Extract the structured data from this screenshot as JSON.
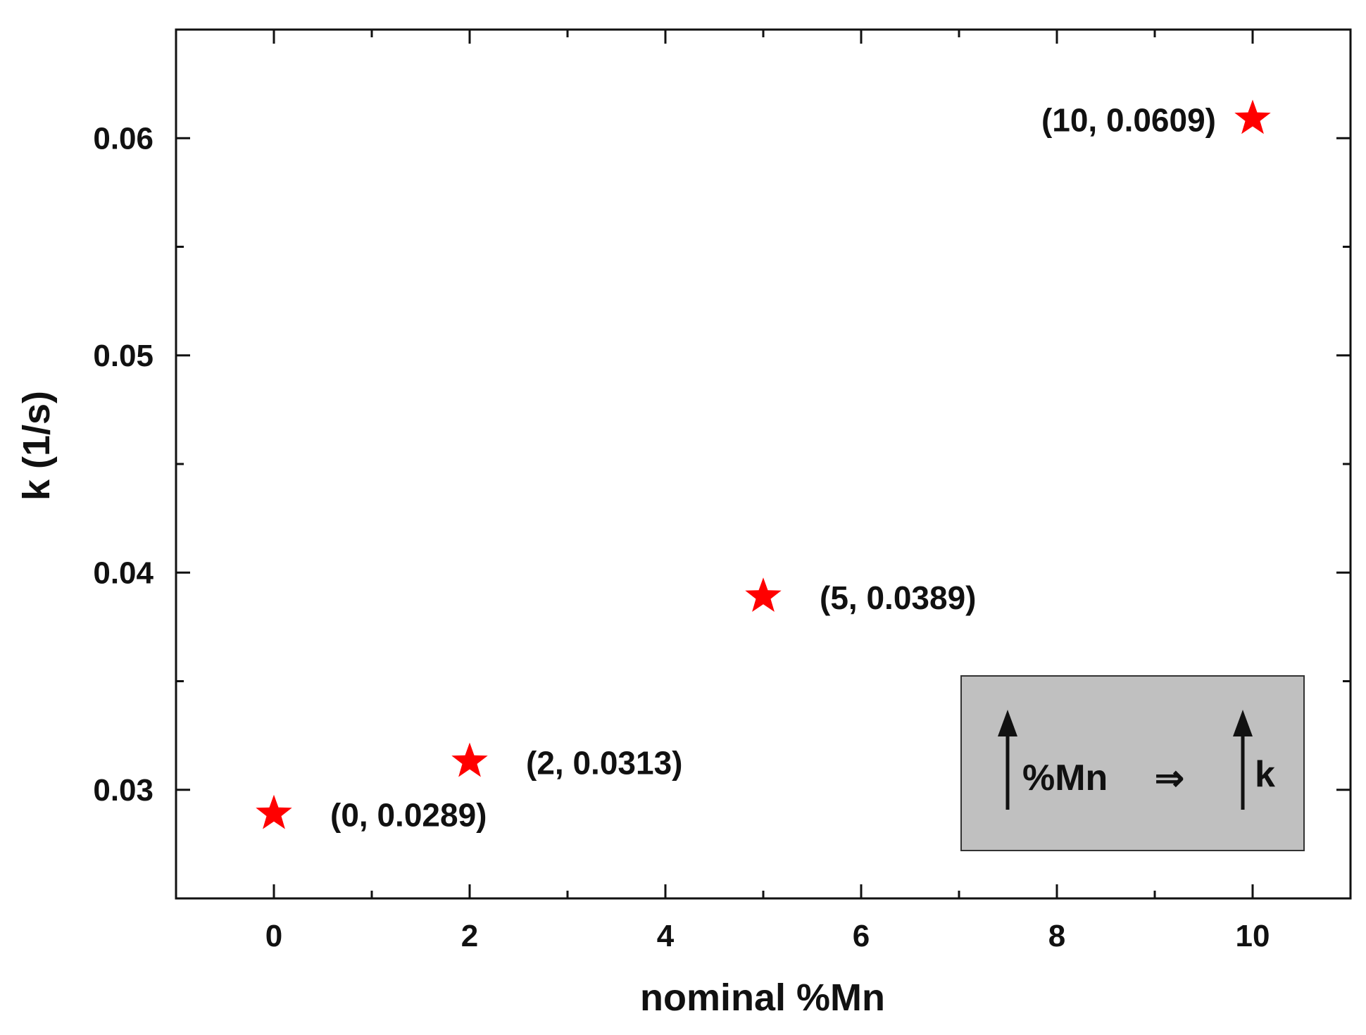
{
  "chart_data": {
    "type": "scatter",
    "xlabel": "nominal %Mn",
    "ylabel": "k (1/s)",
    "xlim": [
      -1,
      11
    ],
    "ylim": [
      0.025,
      0.065
    ],
    "x_ticks": [
      0,
      2,
      4,
      6,
      8,
      10
    ],
    "x_tick_labels": [
      "0",
      "2",
      "4",
      "6",
      "8",
      "10"
    ],
    "y_ticks": [
      0.03,
      0.04,
      0.05,
      0.06
    ],
    "y_tick_labels": [
      "0.03",
      "0.04",
      "0.05",
      "0.06"
    ],
    "grid": false,
    "marker": "star",
    "marker_color": "#ff0000",
    "points": [
      {
        "x": 0,
        "y": 0.0289,
        "label": "(0, 0.0289)"
      },
      {
        "x": 2,
        "y": 0.0313,
        "label": "(2, 0.0313)"
      },
      {
        "x": 5,
        "y": 0.0389,
        "label": "(5, 0.0389)"
      },
      {
        "x": 10,
        "y": 0.0609,
        "label": "(10, 0.0609)"
      }
    ],
    "annotation_box": {
      "position": "bottom-right",
      "background": "#c0c0c0",
      "left_label": "%Mn",
      "relation_symbol": "⇒",
      "right_label": "k",
      "arrow_icon": "up-arrow-icon"
    }
  }
}
